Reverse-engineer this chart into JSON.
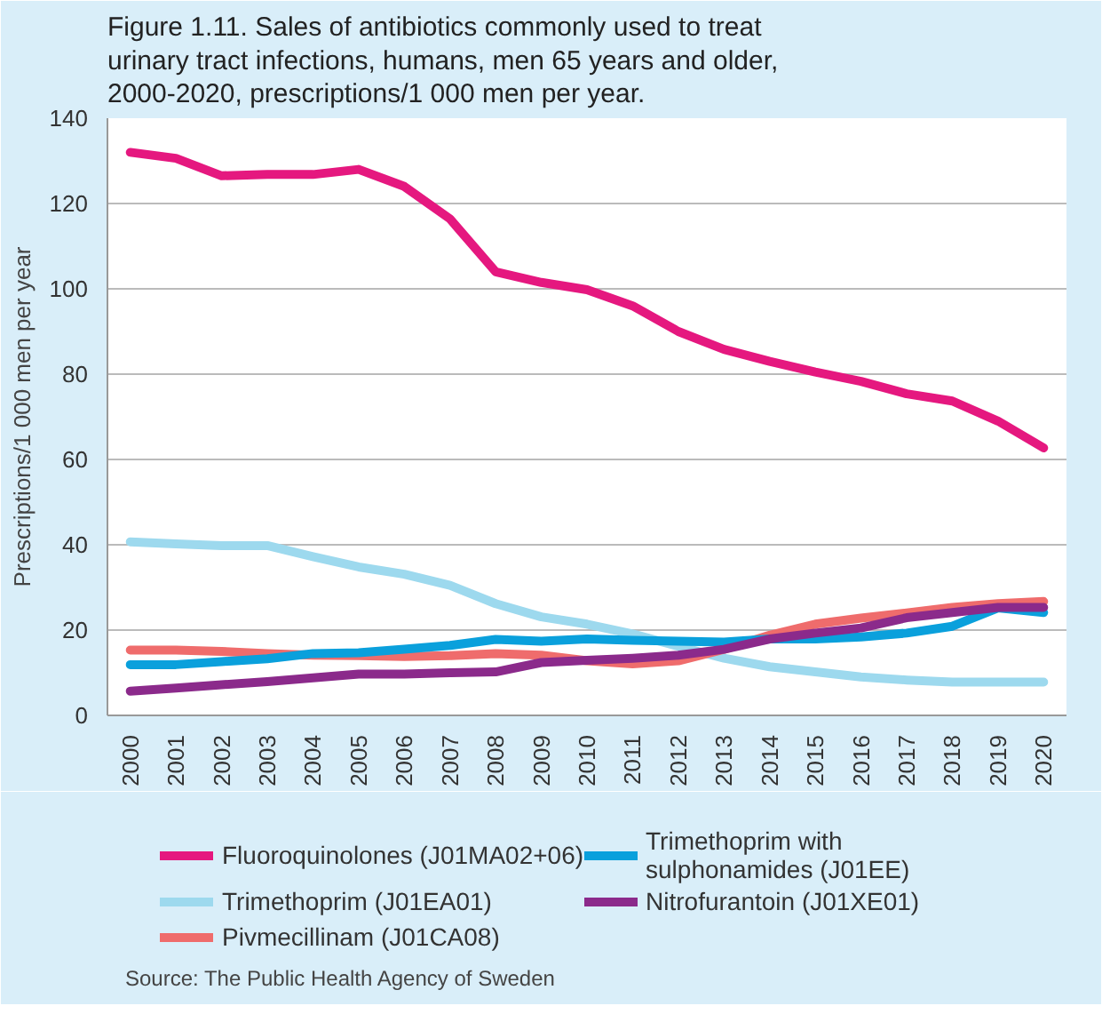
{
  "chart_data": {
    "type": "line",
    "title": "Figure 1.11. Sales of antibiotics commonly used to treat urinary tract infections, humans, men 65 years and older, 2000-2020, prescriptions/1 000 men per year.",
    "ylabel": "Prescriptions/1 000 men per year",
    "categories": [
      "2000",
      "2001",
      "2002",
      "2003",
      "2004",
      "2005",
      "2006",
      "2007",
      "2008",
      "2009",
      "2010",
      "2011",
      "2012",
      "2013",
      "2014",
      "2015",
      "2016",
      "2017",
      "2018",
      "2019",
      "2020"
    ],
    "series": [
      {
        "name": "Fluoroquinolones (J01MA02+06)",
        "color": "#e5187f",
        "values": [
          132,
          130.6,
          126.5,
          126.8,
          126.8,
          128,
          124,
          116.4,
          104,
          101.5,
          99.8,
          96,
          90,
          85.8,
          83,
          80.5,
          78.3,
          75.4,
          73.7,
          69,
          62.7
        ]
      },
      {
        "name": "Trimethoprim (J01EA01)",
        "color": "#9dd9ee",
        "values": [
          40.7,
          40.2,
          39.8,
          39.8,
          37.2,
          34.8,
          33.1,
          30.5,
          26.2,
          23.1,
          21.4,
          19.1,
          16.2,
          13.4,
          11.4,
          10.2,
          9,
          8.3,
          7.8,
          7.8,
          7.8
        ]
      },
      {
        "name": "Pivmecillinam (J01CA08)",
        "color": "#ef6c6c",
        "values": [
          15.3,
          15.3,
          15,
          14.5,
          14.1,
          14,
          13.8,
          14,
          14.5,
          14.1,
          12.8,
          12.1,
          12.8,
          15.5,
          18.8,
          21.4,
          22.8,
          24,
          25.3,
          26.2,
          26.7
        ]
      },
      {
        "name": "Trimethoprim with sulphonamides (J01EE)",
        "color": "#0aa0dc",
        "values": [
          11.9,
          11.9,
          12.6,
          13.3,
          14.5,
          14.7,
          15.5,
          16.4,
          17.8,
          17.4,
          17.9,
          17.6,
          17.4,
          17.2,
          17.9,
          17.9,
          18.4,
          19.3,
          20.9,
          25.2,
          24.1
        ]
      },
      {
        "name": "Nitrofurantoin (J01XE01)",
        "color": "#8b2a8b",
        "values": [
          5.7,
          6.4,
          7.2,
          7.9,
          8.8,
          9.7,
          9.7,
          10,
          10.2,
          12.4,
          12.9,
          13.4,
          14.1,
          15.5,
          17.9,
          19.3,
          20.5,
          22.9,
          24.1,
          25.3,
          25.3
        ]
      }
    ],
    "ylim": [
      0,
      140
    ],
    "yticks": [
      0,
      20,
      40,
      60,
      80,
      100,
      120,
      140
    ],
    "grid": "y",
    "legend": "bottom",
    "marker": "none",
    "line_style": "solid",
    "annotations": [
      "Source: The Public Health Agency of Sweden"
    ]
  }
}
